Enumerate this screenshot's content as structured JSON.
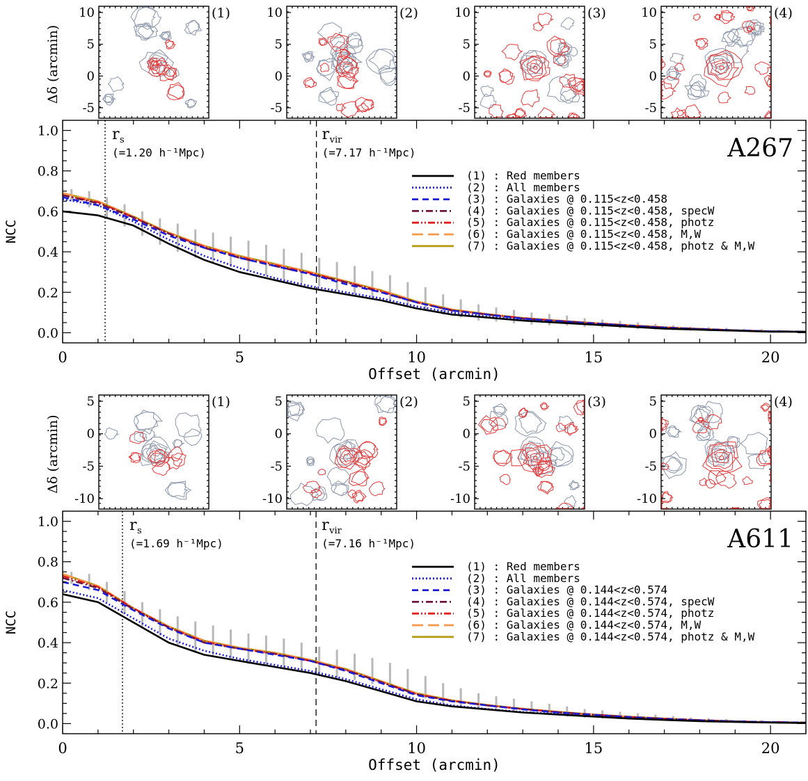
{
  "figure": {
    "panels": [
      {
        "cluster": "A267",
        "rs_label": "r",
        "rs_sub": "s",
        "rs_value": "(=1.20 h⁻¹Mpc)",
        "rvir_label": "r",
        "rvir_sub": "vir",
        "rvir_value": "(=7.17 h⁻¹Mpc)",
        "thumb_ylabel": "Δδ (arcmin)",
        "thumb_labels": [
          "(1)",
          "(2)",
          "(3)",
          "(4)"
        ],
        "thumb_yticks": [
          "10",
          "5",
          "0",
          "-5"
        ],
        "legend": [
          "(1) : Red members",
          "(2) : All members",
          "(3) : Galaxies @ 0.115<z<0.458",
          "(4) : Galaxies @ 0.115<z<0.458, specW",
          "(5) : Galaxies @ 0.115<z<0.458, photz",
          "(6) : Galaxies @ 0.115<z<0.458, M,W",
          "(7) : Galaxies @ 0.115<z<0.458, photz & M,W"
        ]
      },
      {
        "cluster": "A611",
        "rs_label": "r",
        "rs_sub": "s",
        "rs_value": "(=1.69 h⁻¹Mpc)",
        "rvir_label": "r",
        "rvir_sub": "vir",
        "rvir_value": "(=7.16 h⁻¹Mpc)",
        "thumb_ylabel": "Δδ (arcmin)",
        "thumb_labels": [
          "(1)",
          "(2)",
          "(3)",
          "(4)"
        ],
        "thumb_yticks": [
          "5",
          "0",
          "-5",
          "-10"
        ],
        "legend": [
          "(1) : Red members",
          "(2) : All members",
          "(3) : Galaxies @ 0.144<z<0.574",
          "(4) : Galaxies @ 0.144<z<0.574, specW",
          "(5) : Galaxies @ 0.144<z<0.574, photz",
          "(6) : Galaxies @ 0.144<z<0.574, M,W",
          "(7) : Galaxies @ 0.144<z<0.574, photz & M,W"
        ]
      }
    ]
  },
  "chart_data": [
    {
      "type": "line",
      "cluster": "A267",
      "xlabel": "Offset (arcmin)",
      "ylabel": "NCC",
      "xlim": [
        0,
        21
      ],
      "ylim": [
        -0.05,
        1.05
      ],
      "xticks": [
        0,
        5,
        10,
        15,
        20
      ],
      "yticks": [
        0.0,
        0.2,
        0.4,
        0.6,
        0.8,
        1.0
      ],
      "vlines": [
        {
          "x": 1.2,
          "style": "dotted"
        },
        {
          "x": 7.17,
          "style": "dashed"
        }
      ],
      "x": [
        0,
        1,
        2,
        3,
        4,
        5,
        6,
        7,
        8,
        9,
        10,
        11,
        12,
        13,
        14,
        15,
        16,
        17,
        18,
        19,
        20,
        21
      ],
      "series": [
        {
          "name": "(1) : Red members",
          "color": "#000000",
          "dash": "solid",
          "values": [
            0.6,
            0.58,
            0.53,
            0.44,
            0.36,
            0.3,
            0.26,
            0.22,
            0.19,
            0.16,
            0.12,
            0.09,
            0.075,
            0.06,
            0.05,
            0.04,
            0.03,
            0.02,
            0.015,
            0.01,
            0.005,
            0.005
          ]
        },
        {
          "name": "(2) : All members",
          "color": "#1c1cd6",
          "dash": "dotted",
          "values": [
            0.66,
            0.63,
            0.55,
            0.46,
            0.38,
            0.32,
            0.27,
            0.23,
            0.2,
            0.17,
            0.13,
            0.1,
            0.08,
            0.065,
            0.052,
            0.042,
            0.032,
            0.022,
            0.016,
            0.011,
            0.006,
            0.005
          ]
        },
        {
          "name": "(3) : Galaxies @ 0.115<z<0.458",
          "color": "#1c1cd6",
          "dash": "dashed",
          "values": [
            0.67,
            0.63,
            0.56,
            0.48,
            0.42,
            0.37,
            0.33,
            0.29,
            0.24,
            0.2,
            0.15,
            0.11,
            0.09,
            0.07,
            0.058,
            0.046,
            0.035,
            0.025,
            0.018,
            0.012,
            0.007,
            0.005
          ]
        },
        {
          "name": "(4) : Galaxies @ 0.115<z<0.458, specW",
          "color": "#6e1540",
          "dash": "dashdot",
          "values": [
            0.68,
            0.64,
            0.57,
            0.49,
            0.42,
            0.37,
            0.33,
            0.29,
            0.25,
            0.2,
            0.15,
            0.11,
            0.09,
            0.07,
            0.058,
            0.047,
            0.036,
            0.026,
            0.018,
            0.012,
            0.007,
            0.005
          ]
        },
        {
          "name": "(5) : Galaxies @ 0.115<z<0.458, photz",
          "color": "#e01e1e",
          "dash": "dashdotdot",
          "values": [
            0.68,
            0.645,
            0.57,
            0.49,
            0.425,
            0.375,
            0.335,
            0.295,
            0.25,
            0.205,
            0.15,
            0.112,
            0.09,
            0.072,
            0.059,
            0.047,
            0.036,
            0.026,
            0.019,
            0.012,
            0.007,
            0.005
          ]
        },
        {
          "name": "(6) : Galaxies @ 0.115<z<0.458, M,W",
          "color": "#f59a4a",
          "dash": "longdash",
          "values": [
            0.69,
            0.65,
            0.575,
            0.495,
            0.43,
            0.38,
            0.34,
            0.3,
            0.255,
            0.21,
            0.155,
            0.115,
            0.092,
            0.073,
            0.06,
            0.048,
            0.037,
            0.027,
            0.019,
            0.012,
            0.007,
            0.005
          ]
        },
        {
          "name": "(7) : Galaxies @ 0.115<z<0.458, photz & M,W",
          "color": "#b59c14",
          "dash": "solid",
          "values": [
            0.69,
            0.65,
            0.575,
            0.495,
            0.43,
            0.38,
            0.34,
            0.3,
            0.255,
            0.21,
            0.155,
            0.115,
            0.092,
            0.073,
            0.06,
            0.048,
            0.037,
            0.027,
            0.019,
            0.012,
            0.007,
            0.005
          ]
        }
      ],
      "errorbars": {
        "x": [
          0.25,
          0.75,
          1.25,
          1.75,
          2.25,
          2.75,
          3.25,
          3.75,
          4.25,
          4.75,
          5.25,
          5.75,
          6.25,
          6.75,
          7.25,
          7.75,
          8.25,
          8.75,
          9.25,
          9.75,
          10.25,
          10.75,
          11.25,
          11.75,
          12.25,
          12.75,
          13.25,
          13.75,
          14.25,
          14.75,
          15.25,
          15.75,
          16.25,
          16.75,
          17.25,
          17.75,
          18.25,
          18.75,
          19.25,
          19.75,
          20.25,
          20.75
        ],
        "center": [
          0.68,
          0.66,
          0.62,
          0.58,
          0.54,
          0.5,
          0.47,
          0.44,
          0.42,
          0.4,
          0.38,
          0.36,
          0.34,
          0.32,
          0.3,
          0.28,
          0.26,
          0.24,
          0.22,
          0.19,
          0.17,
          0.14,
          0.12,
          0.1,
          0.09,
          0.08,
          0.07,
          0.065,
          0.06,
          0.05,
          0.045,
          0.04,
          0.035,
          0.03,
          0.025,
          0.02,
          0.018,
          0.015,
          0.012,
          0.01,
          0.007,
          0.005
        ],
        "half_height": [
          0.03,
          0.04,
          0.05,
          0.055,
          0.06,
          0.065,
          0.07,
          0.07,
          0.075,
          0.075,
          0.075,
          0.075,
          0.075,
          0.075,
          0.07,
          0.07,
          0.07,
          0.065,
          0.065,
          0.06,
          0.055,
          0.05,
          0.045,
          0.04,
          0.035,
          0.033,
          0.03,
          0.028,
          0.025,
          0.022,
          0.02,
          0.018,
          0.016,
          0.014,
          0.012,
          0.01,
          0.01,
          0.009,
          0.008,
          0.008,
          0.007,
          0.006
        ],
        "color": "#b8b8b8"
      }
    },
    {
      "type": "line",
      "cluster": "A611",
      "xlabel": "Offset (arcmin)",
      "ylabel": "NCC",
      "xlim": [
        0,
        21
      ],
      "ylim": [
        -0.05,
        1.05
      ],
      "xticks": [
        0,
        5,
        10,
        15,
        20
      ],
      "yticks": [
        0.0,
        0.2,
        0.4,
        0.6,
        0.8,
        1.0
      ],
      "vlines": [
        {
          "x": 1.69,
          "style": "dotted"
        },
        {
          "x": 7.16,
          "style": "dashed"
        }
      ],
      "x": [
        0,
        1,
        2,
        3,
        4,
        5,
        6,
        7,
        8,
        9,
        10,
        11,
        12,
        13,
        14,
        15,
        16,
        17,
        18,
        19,
        20,
        21
      ],
      "series": [
        {
          "name": "(1) : Red members",
          "color": "#000000",
          "dash": "solid",
          "values": [
            0.64,
            0.6,
            0.5,
            0.4,
            0.34,
            0.31,
            0.28,
            0.25,
            0.21,
            0.16,
            0.11,
            0.085,
            0.07,
            0.055,
            0.045,
            0.035,
            0.025,
            0.018,
            0.012,
            0.008,
            0.005,
            0.003
          ]
        },
        {
          "name": "(2) : All members",
          "color": "#1c1cd6",
          "dash": "dotted",
          "values": [
            0.66,
            0.62,
            0.52,
            0.42,
            0.36,
            0.32,
            0.29,
            0.26,
            0.22,
            0.17,
            0.12,
            0.09,
            0.072,
            0.057,
            0.047,
            0.036,
            0.026,
            0.019,
            0.013,
            0.009,
            0.006,
            0.004
          ]
        },
        {
          "name": "(3) : Galaxies @ 0.144<z<0.574",
          "color": "#1c1cd6",
          "dash": "dashed",
          "values": [
            0.7,
            0.66,
            0.56,
            0.47,
            0.4,
            0.37,
            0.34,
            0.31,
            0.26,
            0.2,
            0.14,
            0.11,
            0.09,
            0.07,
            0.055,
            0.043,
            0.032,
            0.023,
            0.016,
            0.011,
            0.007,
            0.005
          ]
        },
        {
          "name": "(4) : Galaxies @ 0.144<z<0.574, specW",
          "color": "#6e1540",
          "dash": "dashdot",
          "values": [
            0.72,
            0.67,
            0.565,
            0.475,
            0.4,
            0.37,
            0.345,
            0.31,
            0.265,
            0.205,
            0.145,
            0.112,
            0.09,
            0.072,
            0.056,
            0.044,
            0.033,
            0.024,
            0.017,
            0.011,
            0.007,
            0.005
          ]
        },
        {
          "name": "(5) : Galaxies @ 0.144<z<0.574, photz",
          "color": "#e01e1e",
          "dash": "dashdotdot",
          "values": [
            0.73,
            0.675,
            0.57,
            0.475,
            0.405,
            0.37,
            0.345,
            0.31,
            0.265,
            0.205,
            0.145,
            0.113,
            0.09,
            0.072,
            0.057,
            0.044,
            0.033,
            0.024,
            0.017,
            0.011,
            0.007,
            0.005
          ]
        },
        {
          "name": "(6) : Galaxies @ 0.144<z<0.574, M,W",
          "color": "#f59a4a",
          "dash": "longdash",
          "values": [
            0.74,
            0.68,
            0.57,
            0.48,
            0.41,
            0.375,
            0.35,
            0.315,
            0.27,
            0.21,
            0.15,
            0.115,
            0.092,
            0.073,
            0.058,
            0.045,
            0.034,
            0.025,
            0.017,
            0.011,
            0.007,
            0.005
          ]
        },
        {
          "name": "(7) : Galaxies @ 0.144<z<0.574, photz & M,W",
          "color": "#b59c14",
          "dash": "solid",
          "values": [
            0.74,
            0.68,
            0.57,
            0.48,
            0.41,
            0.375,
            0.35,
            0.315,
            0.27,
            0.21,
            0.15,
            0.115,
            0.092,
            0.073,
            0.058,
            0.045,
            0.034,
            0.025,
            0.017,
            0.011,
            0.007,
            0.005
          ]
        }
      ],
      "errorbars": {
        "x": [
          0.25,
          0.75,
          1.25,
          1.75,
          2.25,
          2.75,
          3.25,
          3.75,
          4.25,
          4.75,
          5.25,
          5.75,
          6.25,
          6.75,
          7.25,
          7.75,
          8.25,
          8.75,
          9.25,
          9.75,
          10.25,
          10.75,
          11.25,
          11.75,
          12.25,
          12.75,
          13.25,
          13.75,
          14.25,
          14.75,
          15.25,
          15.75,
          16.25,
          16.75,
          17.25,
          17.75,
          18.25,
          18.75,
          19.25,
          19.75,
          20.25,
          20.75
        ],
        "center": [
          0.72,
          0.7,
          0.65,
          0.6,
          0.54,
          0.5,
          0.46,
          0.43,
          0.41,
          0.39,
          0.37,
          0.36,
          0.345,
          0.33,
          0.31,
          0.295,
          0.28,
          0.26,
          0.24,
          0.21,
          0.18,
          0.15,
          0.13,
          0.11,
          0.1,
          0.09,
          0.08,
          0.07,
          0.06,
          0.05,
          0.045,
          0.04,
          0.035,
          0.03,
          0.025,
          0.02,
          0.016,
          0.013,
          0.01,
          0.008,
          0.006,
          0.004
        ],
        "half_height": [
          0.03,
          0.04,
          0.05,
          0.055,
          0.06,
          0.065,
          0.07,
          0.075,
          0.075,
          0.075,
          0.075,
          0.075,
          0.075,
          0.07,
          0.07,
          0.07,
          0.065,
          0.065,
          0.06,
          0.06,
          0.055,
          0.05,
          0.045,
          0.04,
          0.035,
          0.033,
          0.03,
          0.028,
          0.025,
          0.022,
          0.02,
          0.018,
          0.016,
          0.014,
          0.012,
          0.01,
          0.01,
          0.009,
          0.008,
          0.008,
          0.007,
          0.006
        ],
        "color": "#b8b8b8"
      }
    }
  ]
}
